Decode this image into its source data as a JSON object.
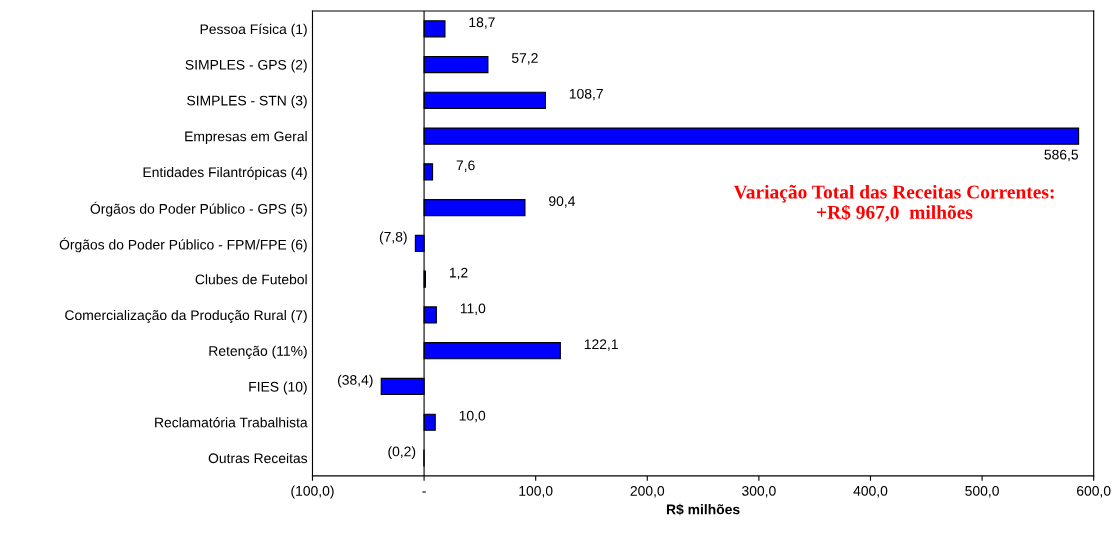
{
  "chart_data": {
    "type": "bar",
    "orientation": "horizontal",
    "xlabel": "R$ milhões",
    "categories": [
      "Pessoa Física (1)",
      "SIMPLES - GPS (2)",
      "SIMPLES - STN (3)",
      "Empresas em Geral",
      "Entidades Filantrópicas (4)",
      "Órgãos do Poder Público - GPS (5)",
      "Órgãos do Poder Público - FPM/FPE (6)",
      "Clubes de Futebol",
      "Comercialização da Produção Rural (7)",
      "Retenção (11%)",
      "FIES (10)",
      "Reclamatória Trabalhista",
      "Outras Receitas"
    ],
    "values": [
      18.7,
      57.2,
      108.7,
      586.5,
      7.6,
      90.4,
      -7.8,
      1.2,
      11.0,
      122.1,
      -38.4,
      10.0,
      -0.2
    ],
    "value_labels": [
      "18,7",
      "57,2",
      "108,7",
      "586,5",
      "7,6",
      "90,4",
      "(7,8)",
      "1,2",
      "11,0",
      "122,1",
      "(38,4)",
      "10,0",
      "(0,2)"
    ],
    "color": "#0000ff",
    "xlim": [
      -100,
      600
    ],
    "xticks": [
      {
        "value": -100,
        "label": "(100,0)"
      },
      {
        "value": 0,
        "label": "-"
      },
      {
        "value": 100,
        "label": "100,0"
      },
      {
        "value": 200,
        "label": "200,0"
      },
      {
        "value": 300,
        "label": "300,0"
      },
      {
        "value": 400,
        "label": "400,0"
      },
      {
        "value": 500,
        "label": "500,0"
      },
      {
        "value": 600,
        "label": "600,0"
      }
    ],
    "annotations": [
      "Variação Total das Receitas Correntes:\n+R$ 967,0  milhões"
    ]
  }
}
